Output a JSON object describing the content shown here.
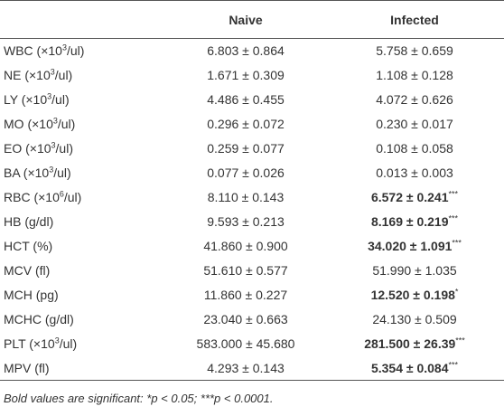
{
  "table": {
    "header": [
      "Naive",
      "Infected"
    ],
    "rows": [
      {
        "label": {
          "text": "WBC (×10",
          "sup": "3",
          "rest": "/ul)"
        },
        "naive": "6.803 ± 0.864",
        "infected": {
          "text": "5.758 ± 0.659",
          "bold": false
        }
      },
      {
        "label": {
          "text": "NE (×10",
          "sup": "3",
          "rest": "/ul)"
        },
        "naive": "1.671 ± 0.309",
        "infected": {
          "text": "1.108 ± 0.128",
          "bold": false
        }
      },
      {
        "label": {
          "text": "LY (×10",
          "sup": "3",
          "rest": "/ul)"
        },
        "naive": "4.486 ± 0.455",
        "infected": {
          "text": "4.072 ± 0.626",
          "bold": false
        }
      },
      {
        "label": {
          "text": "MO (×10",
          "sup": "3",
          "rest": "/ul)"
        },
        "naive": "0.296 ± 0.072",
        "infected": {
          "text": "0.230 ± 0.017",
          "bold": false
        }
      },
      {
        "label": {
          "text": "EO (×10",
          "sup": "3",
          "rest": "/ul)"
        },
        "naive": "0.259 ± 0.077",
        "infected": {
          "text": "0.108 ± 0.058",
          "bold": false
        }
      },
      {
        "label": {
          "text": "BA (×10",
          "sup": "3",
          "rest": "/ul)"
        },
        "naive": "0.077 ± 0.026",
        "infected": {
          "text": "0.013 ± 0.003",
          "bold": false
        }
      },
      {
        "label": {
          "text": "RBC (×10",
          "sup": "6",
          "rest": "/ul)"
        },
        "naive": "8.110 ± 0.143",
        "infected": {
          "text": "6.572 ± 0.241",
          "sig": "***",
          "bold": true
        }
      },
      {
        "label": {
          "text": "HB (g/dl)"
        },
        "naive": "9.593 ± 0.213",
        "infected": {
          "text": "8.169 ± 0.219",
          "sig": "***",
          "bold": true
        }
      },
      {
        "label": {
          "text": "HCT (%)"
        },
        "naive": "41.860 ± 0.900",
        "infected": {
          "text": "34.020 ± 1.091",
          "sig": "***",
          "bold": true
        }
      },
      {
        "label": {
          "text": "MCV (fl)"
        },
        "naive": "51.610 ± 0.577",
        "infected": {
          "text": "51.990 ± 1.035",
          "bold": false
        }
      },
      {
        "label": {
          "text": "MCH (pg)"
        },
        "naive": "11.860 ± 0.227",
        "infected": {
          "text": "12.520 ± 0.198",
          "sig": "*",
          "bold": true
        }
      },
      {
        "label": {
          "text": "MCHC (g/dl)"
        },
        "naive": "23.040 ± 0.663",
        "infected": {
          "text": "24.130 ± 0.509",
          "bold": false
        }
      },
      {
        "label": {
          "text": "PLT (×10",
          "sup": "3",
          "rest": "/ul)"
        },
        "naive": "583.000 ± 45.680",
        "infected": {
          "text": "281.500 ± 26.39",
          "sig": "***",
          "bold": true
        }
      },
      {
        "label": {
          "text": "MPV (fl)"
        },
        "naive": "4.293 ± 0.143",
        "infected": {
          "text": "5.354 ± 0.084",
          "sig": "***",
          "bold": true
        }
      }
    ],
    "footnote": "Bold values are significant: *p < 0.05; ***p < 0.0001."
  }
}
